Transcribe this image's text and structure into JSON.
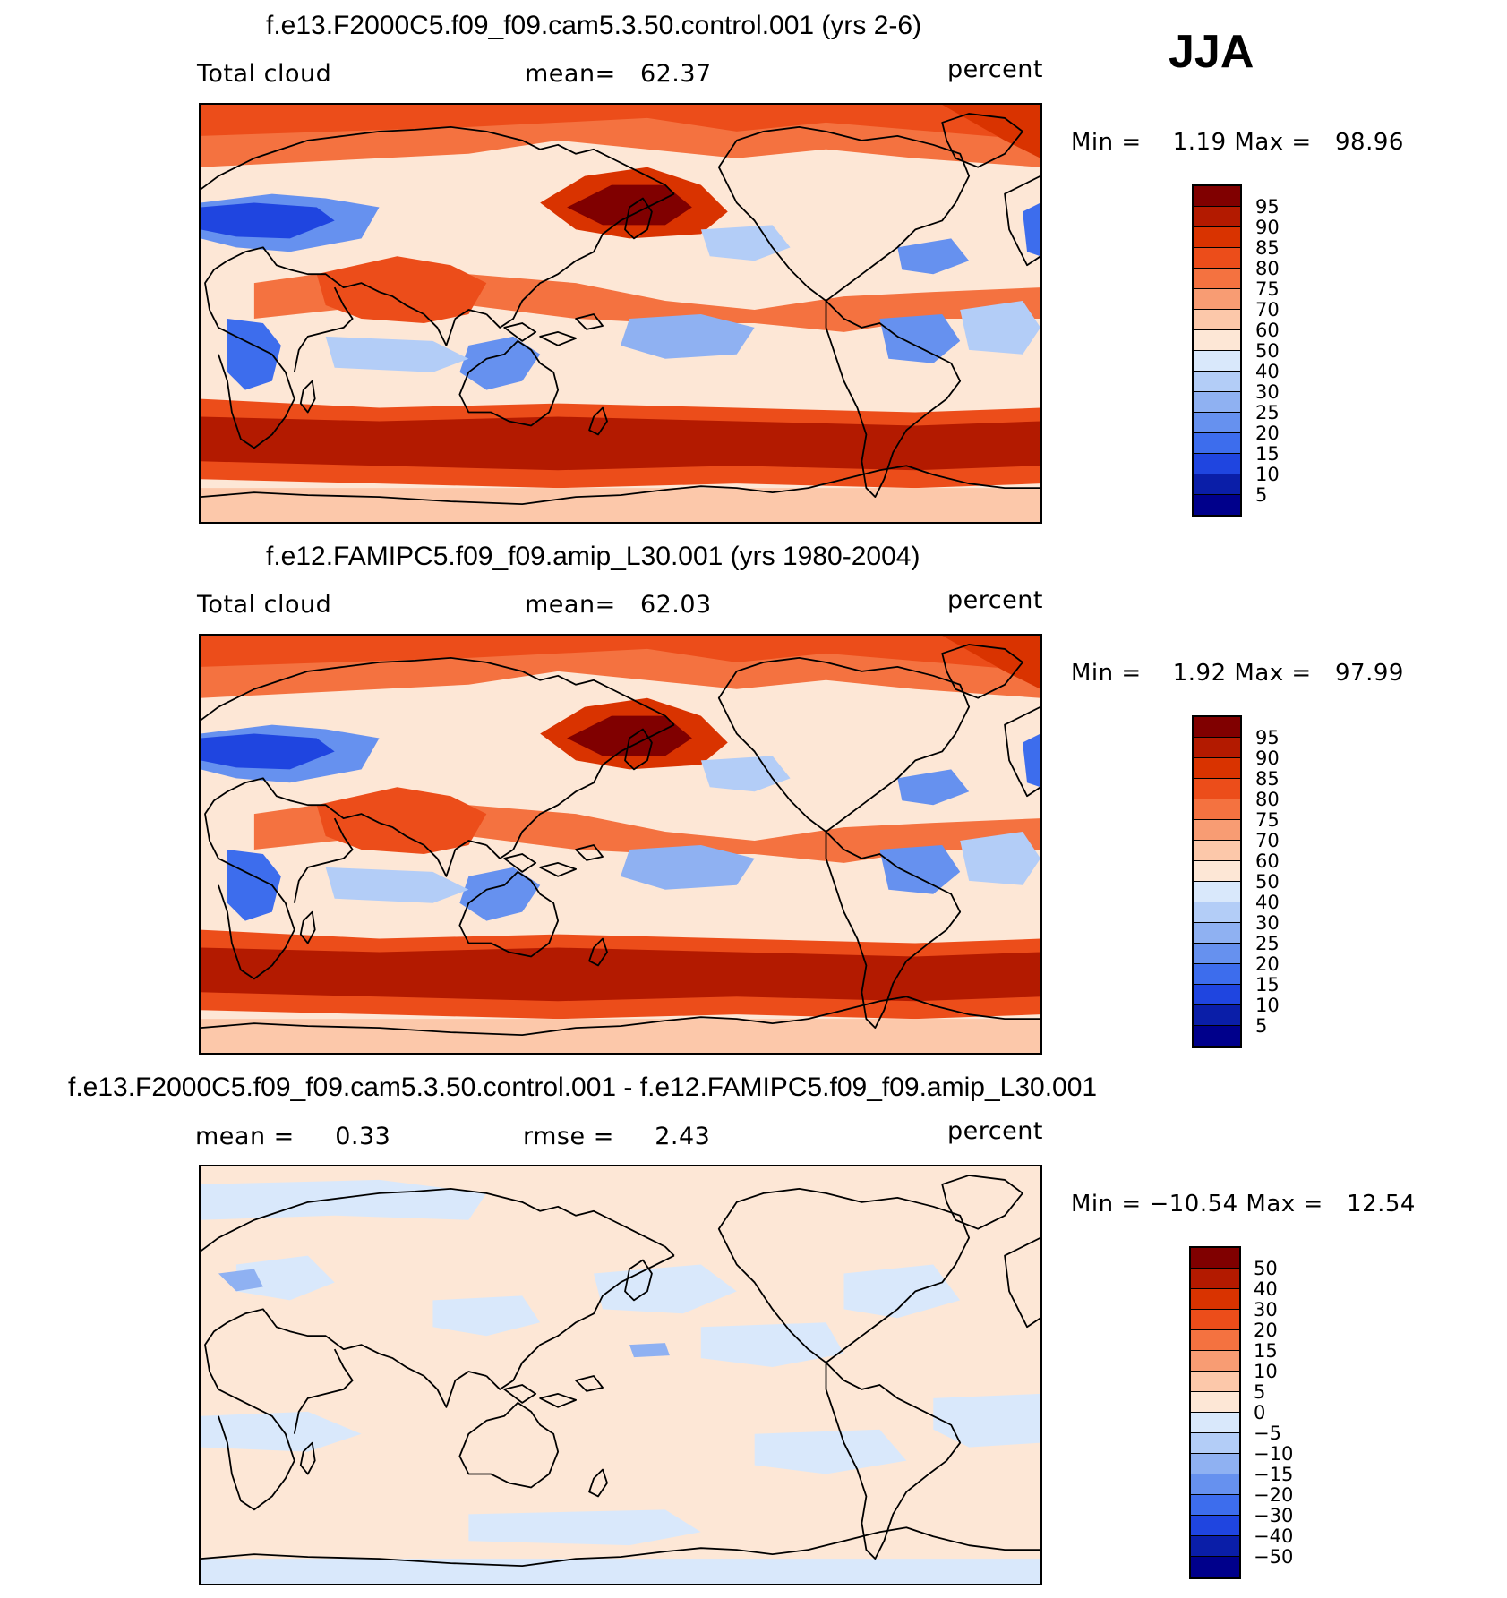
{
  "season_label": "JJA",
  "panels": [
    {
      "title": "f.e13.F2000C5.f09_f09.cam5.3.50.control.001 (yrs 2-6)",
      "left_text": "Total cloud",
      "center_text": "mean=   62.37",
      "right_text": "percent",
      "minmax_text": "Min =    1.19 Max =   98.96",
      "colorbar_labels": [
        "95",
        "90",
        "85",
        "80",
        "75",
        "70",
        "60",
        "50",
        "40",
        "30",
        "25",
        "20",
        "15",
        "10",
        "5"
      ]
    },
    {
      "title": "f.e12.FAMIPC5.f09_f09.amip_L30.001 (yrs 1980-2004)",
      "left_text": "Total cloud",
      "center_text": "mean=   62.03",
      "right_text": "percent",
      "minmax_text": "Min =    1.92 Max =   97.99",
      "colorbar_labels": [
        "95",
        "90",
        "85",
        "80",
        "75",
        "70",
        "60",
        "50",
        "40",
        "30",
        "25",
        "20",
        "15",
        "10",
        "5"
      ]
    },
    {
      "title": "f.e13.F2000C5.f09_f09.cam5.3.50.control.001 - f.e12.FAMIPC5.f09_f09.amip_L30.001",
      "left_text": "mean =     0.33",
      "center_text": "rmse =     2.43",
      "right_text": "percent",
      "minmax_text": "Min = −10.54 Max =   12.54",
      "colorbar_labels": [
        "50",
        "40",
        "30",
        "20",
        "15",
        "10",
        "5",
        "0",
        "−5",
        "−10",
        "−15",
        "−20",
        "−30",
        "−40",
        "−50"
      ]
    }
  ],
  "colors": {
    "palette": [
      "#800000",
      "#b31a00",
      "#d93300",
      "#ec4d1a",
      "#f47240",
      "#f89c73",
      "#fcc8aa",
      "#fde7d6",
      "#d9e8fb",
      "#b3cdf7",
      "#8fb1f2",
      "#6691ef",
      "#3d6ded",
      "#1f45e0",
      "#0a1ea8",
      "#00008b"
    ]
  }
}
